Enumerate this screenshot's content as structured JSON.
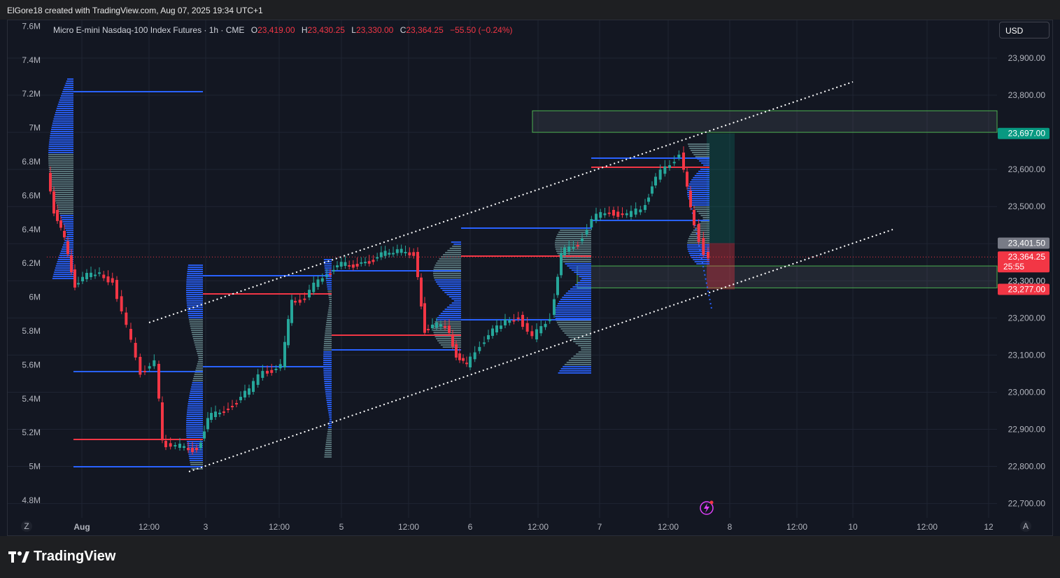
{
  "header": {
    "caption": "ElGore18 created with TradingView.com, Aug 07, 2025 19:34 UTC+1"
  },
  "legend": {
    "symbol": "Micro E-mini Nasdaq-100 Index Futures · 1h · CME",
    "o_key": "O",
    "o": "23,419.00",
    "h_key": "H",
    "h": "23,430.25",
    "l_key": "L",
    "l": "23,330.00",
    "c_key": "C",
    "c": "23,364.25",
    "change": "−55.50 (−0.24%)"
  },
  "currency": "USD",
  "footer": {
    "brand": "TradingView"
  },
  "colors": {
    "up": "#26a69a",
    "down": "#f23645",
    "vp_blue": "#2962ff",
    "vp_grey": "#5d7a80",
    "zone_green": "#4caf50",
    "bg": "#131722"
  },
  "chart_data": {
    "type": "candlestick",
    "price_axis": {
      "side": "right",
      "range": [
        22660,
        23980
      ],
      "ticks": [
        "22,700.00",
        "22,800.00",
        "22,900.00",
        "23,000.00",
        "23,100.00",
        "23,200.00",
        "23,300.00",
        "23,400.00",
        "23,500.00",
        "23,600.00",
        "23,700.00",
        "23,800.00",
        "23,900.00"
      ]
    },
    "volume_axis": {
      "side": "left",
      "ticks": [
        "4.8M",
        "5M",
        "5.2M",
        "5.4M",
        "5.6M",
        "5.8M",
        "6M",
        "6.2M",
        "6.4M",
        "6.6M",
        "6.8M",
        "7M",
        "7.2M",
        "7.4M",
        "7.6M"
      ]
    },
    "time_axis": {
      "ticks": [
        "Aug",
        "12:00",
        "3",
        "12:00",
        "5",
        "12:00",
        "6",
        "12:00",
        "7",
        "12:00",
        "8",
        "12:00",
        "10",
        "12:00",
        "12"
      ]
    },
    "price_labels": [
      {
        "value": "23,697.00",
        "kind": "target",
        "color": "#089981"
      },
      {
        "value": "23,401.50",
        "kind": "entry",
        "color": "#787b86"
      },
      {
        "value": "23,364.25",
        "kind": "last",
        "color": "#f23645",
        "sub": "25:55"
      },
      {
        "value": "23,300.00",
        "kind": "tick",
        "color": ""
      },
      {
        "value": "23,277.00",
        "kind": "stop",
        "color": "#f23645"
      }
    ],
    "axis_buttons": {
      "left": "Z",
      "right": "A"
    },
    "zones": [
      {
        "from": 23700,
        "to": 23758,
        "color": "#4caf50"
      },
      {
        "from": 23281,
        "to": 23340,
        "color": "#4caf50"
      }
    ],
    "position": {
      "entry": 23401.5,
      "target": 23697,
      "stop": 23277
    },
    "channel": {
      "upper": [
        [
          23190,
          23846
        ]
      ],
      "lower": [
        [
          22785,
          23438
        ]
      ]
    }
  }
}
